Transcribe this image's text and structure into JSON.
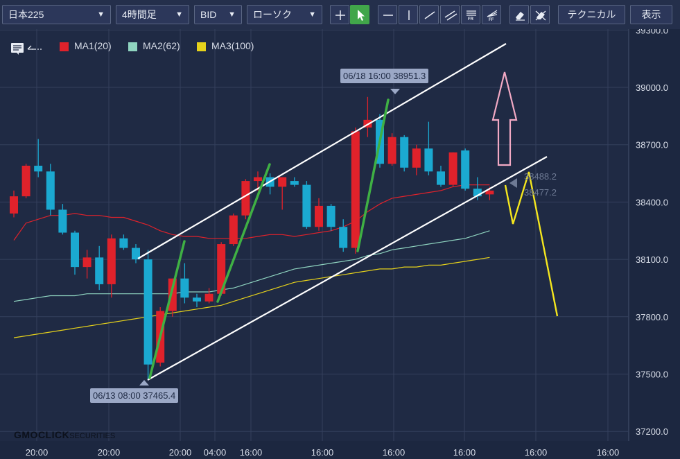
{
  "toolbar": {
    "symbol": "日本225",
    "timeframe": "4時間足",
    "price_type": "BID",
    "chart_style": "ローソク",
    "technical": "テクニカル",
    "display": "表示",
    "fr": "FR",
    "ff": "FF"
  },
  "chart_data": {
    "type": "candlestick",
    "title": "",
    "xlabel": "",
    "ylabel": "",
    "ylim": [
      37100,
      39350
    ],
    "y_ticks": [
      37200,
      37500,
      37800,
      38100,
      38400,
      38700,
      39000,
      39300
    ],
    "y_tick_labels": [
      "37200.0",
      "37500.0",
      "37800.0",
      "38100.0",
      "38400.0",
      "38700.0",
      "39000.0",
      "39300.0"
    ],
    "x_tick_labels": [
      "20:00",
      "20:00",
      "20:00",
      "04:00",
      "16:00",
      "16:00",
      "16:00",
      "16:00",
      "16:00",
      "16:00"
    ],
    "legend": [
      {
        "name": "MA1(20)",
        "color": "#e0222b"
      },
      {
        "name": "MA2(62)",
        "color": "#8fd4c0"
      },
      {
        "name": "MA3(100)",
        "color": "#e6d21b"
      }
    ],
    "candles": [
      {
        "o": 38340,
        "h": 38460,
        "l": 38320,
        "c": 38430
      },
      {
        "o": 38430,
        "h": 38600,
        "l": 38420,
        "c": 38590
      },
      {
        "o": 38590,
        "h": 38730,
        "l": 38530,
        "c": 38560
      },
      {
        "o": 38560,
        "h": 38600,
        "l": 38330,
        "c": 38360
      },
      {
        "o": 38360,
        "h": 38390,
        "l": 38230,
        "c": 38240
      },
      {
        "o": 38240,
        "h": 38250,
        "l": 38020,
        "c": 38060
      },
      {
        "o": 38060,
        "h": 38150,
        "l": 38000,
        "c": 38110
      },
      {
        "o": 38110,
        "h": 38170,
        "l": 37940,
        "c": 37970
      },
      {
        "o": 37970,
        "h": 38230,
        "l": 37900,
        "c": 38210
      },
      {
        "o": 38210,
        "h": 38230,
        "l": 38150,
        "c": 38160
      },
      {
        "o": 38160,
        "h": 38180,
        "l": 38080,
        "c": 38100
      },
      {
        "o": 38100,
        "h": 38150,
        "l": 37470,
        "c": 37550
      },
      {
        "o": 37560,
        "h": 37850,
        "l": 37540,
        "c": 37830
      },
      {
        "o": 37830,
        "h": 38000,
        "l": 37800,
        "c": 38000
      },
      {
        "o": 38000,
        "h": 38080,
        "l": 37870,
        "c": 37900
      },
      {
        "o": 37900,
        "h": 37920,
        "l": 37850,
        "c": 37880
      },
      {
        "o": 37880,
        "h": 37950,
        "l": 37870,
        "c": 37920
      },
      {
        "o": 37920,
        "h": 38190,
        "l": 37910,
        "c": 38180
      },
      {
        "o": 38180,
        "h": 38340,
        "l": 38170,
        "c": 38330
      },
      {
        "o": 38330,
        "h": 38520,
        "l": 38310,
        "c": 38510
      },
      {
        "o": 38510,
        "h": 38560,
        "l": 38460,
        "c": 38530
      },
      {
        "o": 38530,
        "h": 38550,
        "l": 38440,
        "c": 38480
      },
      {
        "o": 38480,
        "h": 38530,
        "l": 38360,
        "c": 38530
      },
      {
        "o": 38510,
        "h": 38530,
        "l": 38480,
        "c": 38490
      },
      {
        "o": 38490,
        "h": 38510,
        "l": 38260,
        "c": 38270
      },
      {
        "o": 38270,
        "h": 38420,
        "l": 38250,
        "c": 38380
      },
      {
        "o": 38380,
        "h": 38390,
        "l": 38250,
        "c": 38270
      },
      {
        "o": 38270,
        "h": 38310,
        "l": 38140,
        "c": 38160
      },
      {
        "o": 38160,
        "h": 38790,
        "l": 38130,
        "c": 38770
      },
      {
        "o": 38790,
        "h": 38950,
        "l": 38740,
        "c": 38830
      },
      {
        "o": 38830,
        "h": 38860,
        "l": 38580,
        "c": 38600
      },
      {
        "o": 38600,
        "h": 38760,
        "l": 38590,
        "c": 38740
      },
      {
        "o": 38740,
        "h": 38750,
        "l": 38560,
        "c": 38580
      },
      {
        "o": 38580,
        "h": 38700,
        "l": 38540,
        "c": 38680
      },
      {
        "o": 38680,
        "h": 38820,
        "l": 38540,
        "c": 38560
      },
      {
        "o": 38560,
        "h": 38590,
        "l": 38480,
        "c": 38490
      },
      {
        "o": 38490,
        "h": 38660,
        "l": 38480,
        "c": 38660
      },
      {
        "o": 38670,
        "h": 38680,
        "l": 38460,
        "c": 38470
      },
      {
        "o": 38470,
        "h": 38530,
        "l": 38410,
        "c": 38430
      },
      {
        "o": 38440,
        "h": 38480,
        "l": 38410,
        "c": 38460
      }
    ],
    "ma1": [
      38200,
      38290,
      38310,
      38330,
      38330,
      38340,
      38330,
      38330,
      38320,
      38320,
      38300,
      38280,
      38250,
      38230,
      38220,
      38220,
      38210,
      38210,
      38210,
      38210,
      38220,
      38230,
      38230,
      38220,
      38230,
      38240,
      38250,
      38270,
      38300,
      38350,
      38390,
      38420,
      38430,
      38440,
      38450,
      38460,
      38480,
      38490,
      38490,
      38490
    ],
    "ma2": [
      37880,
      37890,
      37900,
      37910,
      37910,
      37910,
      37920,
      37920,
      37920,
      37920,
      37920,
      37920,
      37920,
      37920,
      37930,
      37930,
      37930,
      37940,
      37950,
      37970,
      37990,
      38010,
      38030,
      38050,
      38060,
      38070,
      38080,
      38090,
      38100,
      38120,
      38130,
      38150,
      38160,
      38170,
      38180,
      38190,
      38200,
      38210,
      38230,
      38250
    ],
    "ma3": [
      37690,
      37700,
      37710,
      37720,
      37730,
      37740,
      37750,
      37760,
      37770,
      37780,
      37790,
      37800,
      37810,
      37820,
      37830,
      37840,
      37850,
      37860,
      37880,
      37900,
      37920,
      37940,
      37960,
      37980,
      37990,
      38000,
      38010,
      38020,
      38030,
      38040,
      38050,
      38050,
      38060,
      38060,
      38070,
      38070,
      38080,
      38090,
      38100,
      38110
    ],
    "price_labels": [
      "38488.2",
      "38477.2"
    ],
    "annotations": {
      "high_tip": "06/18 16:00 38951.3",
      "low_tip": "06/13 08:00 37465.4"
    }
  },
  "logo": {
    "main": "GMOCLICK",
    "sub": "SECURITIES"
  }
}
